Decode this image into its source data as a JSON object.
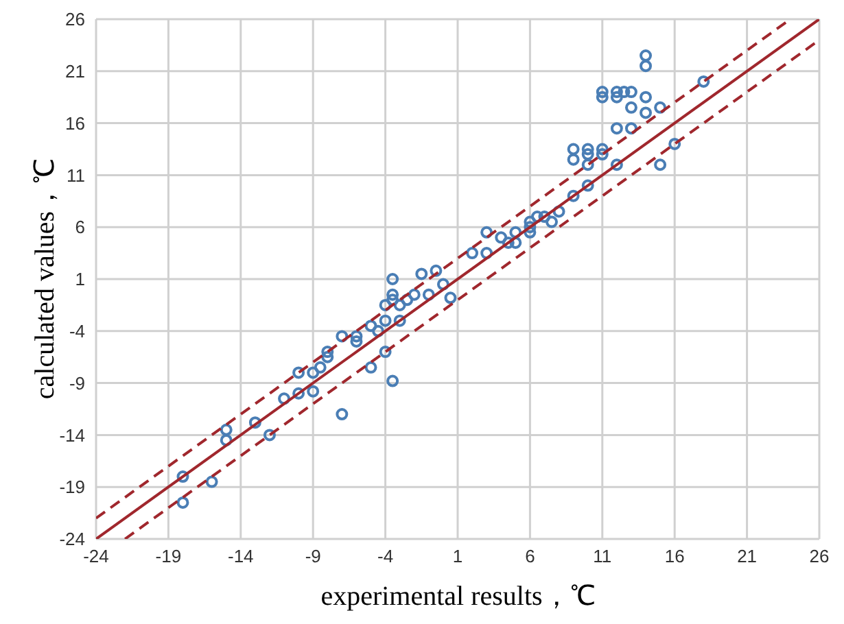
{
  "chart_data": {
    "type": "scatter",
    "xlabel": "experimental results，℃",
    "ylabel": "calculated values，℃",
    "xlim": [
      -24,
      26
    ],
    "ylim": [
      -24,
      26
    ],
    "xticks": [
      -24,
      -19,
      -14,
      -9,
      -4,
      1,
      6,
      11,
      16,
      21,
      26
    ],
    "yticks": [
      -24,
      -19,
      -14,
      -9,
      -4,
      1,
      6,
      11,
      16,
      21,
      26
    ],
    "grid": true,
    "marker": "circle",
    "series": [
      {
        "color": "#4a7eb5",
        "x": [
          -18,
          -18,
          -16,
          -15,
          -15,
          -13,
          -12,
          -11,
          -10,
          -10,
          -9,
          -9,
          -8.5,
          -8,
          -8,
          -7,
          -7,
          -6,
          -6,
          -5,
          -5,
          -4.5,
          -4,
          -4,
          -4,
          -3.5,
          -3.5,
          -3.5,
          -3.5,
          -3,
          -3,
          -2.5,
          -2,
          -1.5,
          -1,
          -0.5,
          0,
          0.5,
          2,
          3,
          3,
          4,
          4.5,
          5,
          5,
          6,
          6,
          6,
          6.5,
          7,
          7.5,
          8,
          9,
          9,
          9,
          10,
          10,
          10,
          10,
          11,
          11,
          11,
          11,
          12,
          12,
          12,
          12,
          12.5,
          13,
          13,
          13,
          14,
          14,
          14,
          14,
          15,
          15,
          16,
          18
        ],
        "values": [
          -18,
          -20.5,
          -18.5,
          -14.5,
          -13.5,
          -12.8,
          -14,
          -10.5,
          -8,
          -10,
          -9.8,
          -8,
          -7.5,
          -6,
          -6.5,
          -4.5,
          -12,
          -5,
          -4.5,
          -3.5,
          -7.5,
          -4,
          -1.5,
          -3,
          -6,
          1,
          -1,
          -0.5,
          -8.8,
          -1.5,
          -3,
          -1,
          -0.5,
          1.5,
          -0.5,
          1.8,
          0.5,
          -0.8,
          3.5,
          5.5,
          3.5,
          5,
          4.5,
          5.5,
          4.5,
          6.5,
          6,
          5.5,
          7,
          7,
          6.5,
          7.5,
          9,
          12.5,
          13.5,
          13,
          12,
          13.5,
          10,
          19,
          18.5,
          13.5,
          13,
          19,
          18.5,
          15.5,
          12,
          19,
          17.5,
          15.5,
          19,
          22.5,
          21.5,
          18.5,
          17,
          17.5,
          12,
          14,
          20
        ]
      },
      {
        "type": "line",
        "color": "#a0272d",
        "line_style": "solid",
        "marker": "none",
        "x": [
          -24,
          26
        ],
        "values": [
          -24,
          26
        ]
      },
      {
        "type": "line",
        "color": "#a0272d",
        "line_style": "dashed",
        "marker": "none",
        "x": [
          -24,
          24
        ],
        "values": [
          -22,
          26
        ]
      },
      {
        "type": "line",
        "color": "#a0272d",
        "line_style": "dashed",
        "marker": "none",
        "x": [
          -22,
          26
        ],
        "values": [
          -24,
          24
        ]
      }
    ]
  }
}
